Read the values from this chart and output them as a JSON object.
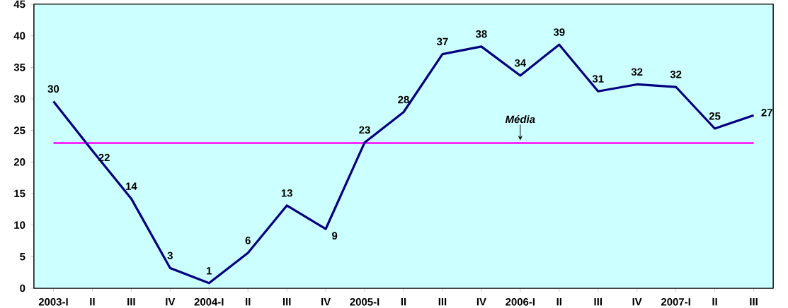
{
  "chart_data": {
    "type": "line",
    "categories": [
      "2003-I",
      "II",
      "III",
      "IV",
      "2004-I",
      "II",
      "III",
      "IV",
      "2005-I",
      "II",
      "III",
      "IV",
      "2006-I",
      "II",
      "III",
      "IV",
      "2007-I",
      "II",
      "III"
    ],
    "series": [
      {
        "color": "#000080",
        "values": [
          29.6,
          21.8,
          14.2,
          3.2,
          0.8,
          5.6,
          13.1,
          9.4,
          23.1,
          27.9,
          37.1,
          38.3,
          33.7,
          38.6,
          31.2,
          32.3,
          31.9,
          25.3,
          27.4
        ],
        "value_labels": [
          "30",
          "22",
          "14",
          "3",
          "1",
          "6",
          "13",
          "9",
          "23",
          "28",
          "37",
          "38",
          "34",
          "39",
          "31",
          "32",
          "32",
          "25",
          "27"
        ]
      }
    ],
    "ylim": [
      0,
      45
    ],
    "yticks": [
      0,
      5,
      10,
      15,
      20,
      25,
      30,
      35,
      40,
      45
    ],
    "ref_lines": [
      {
        "axis": "y",
        "value": 23,
        "label": "Média",
        "color": "#ff00ff"
      }
    ],
    "grid": false,
    "marker": "none",
    "line_style": "solid"
  }
}
